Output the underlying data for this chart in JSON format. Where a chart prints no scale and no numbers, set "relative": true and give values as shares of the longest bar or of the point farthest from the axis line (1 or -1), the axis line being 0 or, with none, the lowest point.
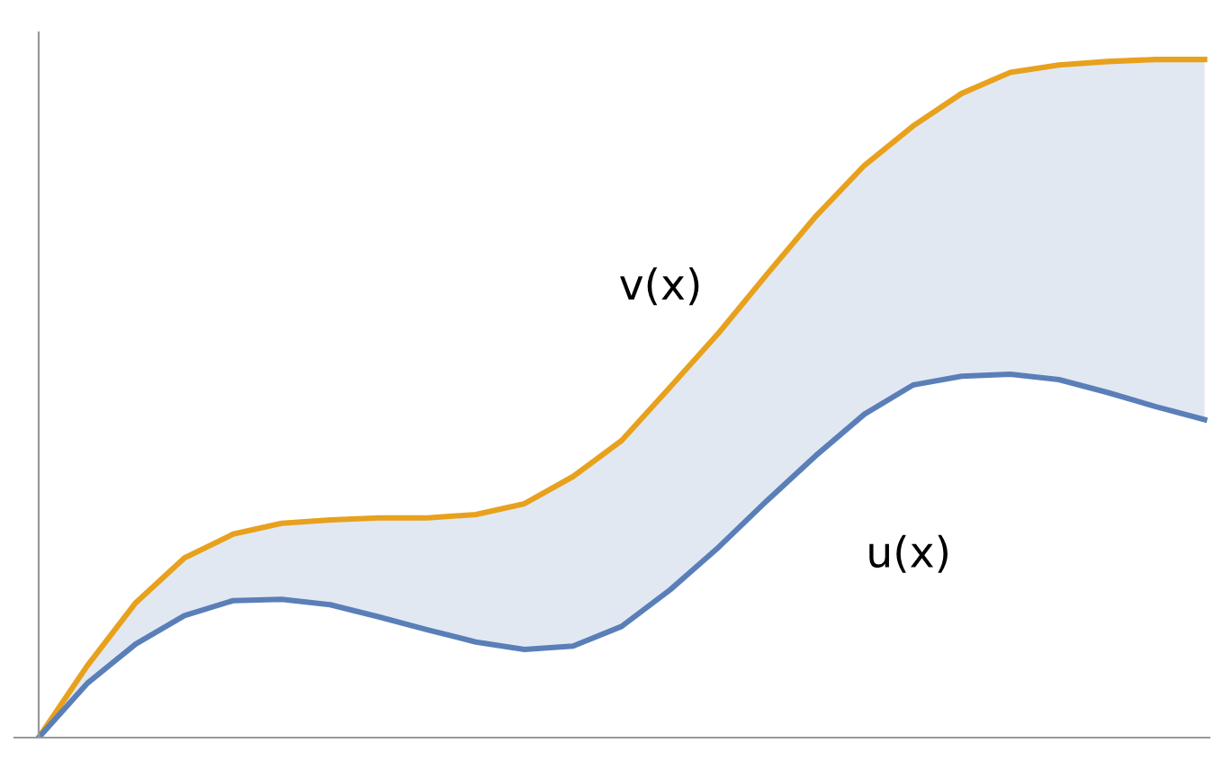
{
  "chart_data": {
    "type": "line",
    "relative": true,
    "categories": [
      null,
      null,
      null,
      null,
      null,
      null,
      null,
      null,
      null,
      null,
      null,
      null,
      null,
      null,
      null,
      null,
      null,
      null,
      null,
      null,
      null,
      null,
      null,
      null,
      null
    ],
    "series": [
      {
        "name": "v(x)",
        "color": "#e8a11c",
        "values": [
          0,
          0.106,
          0.199,
          0.265,
          0.3,
          0.316,
          0.321,
          0.324,
          0.324,
          0.329,
          0.345,
          0.385,
          0.438,
          0.517,
          0.597,
          0.684,
          0.769,
          0.844,
          0.902,
          0.95,
          0.981,
          0.992,
          0.997,
          1,
          1
        ]
      },
      {
        "name": "u(x)",
        "color": "#5a7fb8",
        "values": [
          0,
          0.08,
          0.138,
          0.18,
          0.202,
          0.204,
          0.196,
          0.178,
          0.159,
          0.141,
          0.13,
          0.135,
          0.164,
          0.218,
          0.281,
          0.35,
          0.416,
          0.477,
          0.52,
          0.533,
          0.536,
          0.528,
          0.509,
          0.488,
          0.469
        ],
        "lower": [
          0,
          0.08,
          0.138,
          0.18,
          0.202,
          0.204,
          0.196,
          0.178,
          0.159,
          0.141,
          0.13,
          0.135,
          0.164,
          0.218,
          0.281,
          0.35,
          0.416,
          0.477,
          0.52,
          0.533,
          0.536,
          0.528,
          0.509,
          0.488,
          0.469
        ],
        "upper": [
          0,
          0.106,
          0.199,
          0.265,
          0.3,
          0.316,
          0.321,
          0.324,
          0.324,
          0.329,
          0.345,
          0.385,
          0.438,
          0.517,
          0.597,
          0.684,
          0.769,
          0.844,
          0.902,
          0.95,
          0.981,
          0.992,
          0.997,
          1,
          1
        ]
      }
    ],
    "grid": false,
    "legend": false
  }
}
